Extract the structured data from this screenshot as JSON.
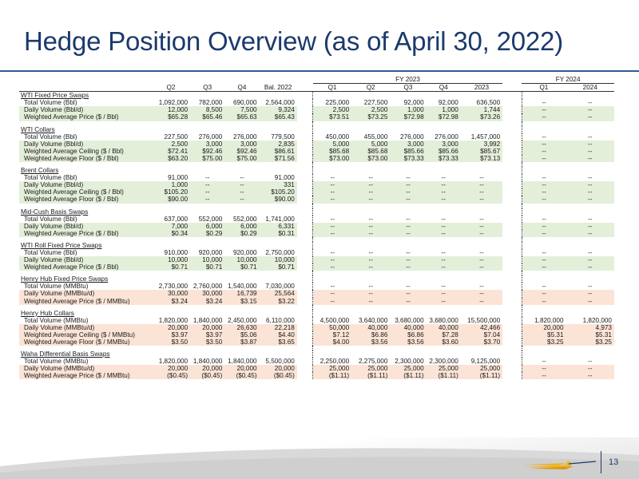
{
  "title": "Hedge Position Overview (as of April 30, 2022)",
  "page_number": "13",
  "headers": {
    "fy2023": "FY 2023",
    "fy2024": "FY 2024",
    "cols": [
      "Q2",
      "Q3",
      "Q4",
      "Bal. 2022",
      "Q1",
      "Q2",
      "Q3",
      "Q4",
      "2023",
      "Q1",
      "2024"
    ]
  },
  "sections": [
    {
      "title": "WTI Fixed Price Swaps",
      "shade": "green",
      "rows": [
        {
          "label": "Total Volume (Bbl)",
          "values": [
            "1,092,000",
            "782,000",
            "690,000",
            "2,564,000",
            "225,000",
            "227,500",
            "92,000",
            "92,000",
            "636,500",
            "--",
            "--"
          ]
        },
        {
          "label": "Daily Volume (Bbl/d)",
          "values": [
            "12,000",
            "8,500",
            "7,500",
            "9,324",
            "2,500",
            "2,500",
            "1,000",
            "1,000",
            "1,744",
            "--",
            "--"
          ]
        },
        {
          "label": "Weighted Average Price ($ / Bbl)",
          "values": [
            "$65.28",
            "$65.46",
            "$65.63",
            "$65.43",
            "$73.51",
            "$73.25",
            "$72.98",
            "$72.98",
            "$73.26",
            "--",
            "--"
          ]
        }
      ]
    },
    {
      "title": "WTI Collars",
      "shade": "green",
      "rows": [
        {
          "label": "Total Volume (Bbl)",
          "values": [
            "227,500",
            "276,000",
            "276,000",
            "779,500",
            "450,000",
            "455,000",
            "276,000",
            "276,000",
            "1,457,000",
            "--",
            "--"
          ]
        },
        {
          "label": "Daily Volume (Bbl/d)",
          "values": [
            "2,500",
            "3,000",
            "3,000",
            "2,835",
            "5,000",
            "5,000",
            "3,000",
            "3,000",
            "3,992",
            "--",
            "--"
          ]
        },
        {
          "label": "Weighted Average Ceiling ($ / Bbl)",
          "values": [
            "$72.41",
            "$92.46",
            "$92.46",
            "$86.61",
            "$85.68",
            "$85.68",
            "$85.66",
            "$85.66",
            "$85.67",
            "--",
            "--"
          ]
        },
        {
          "label": "Weighted Average Floor ($ / Bbl)",
          "values": [
            "$63.20",
            "$75.00",
            "$75.00",
            "$71.56",
            "$73.00",
            "$73.00",
            "$73.33",
            "$73.33",
            "$73.13",
            "--",
            "--"
          ]
        }
      ]
    },
    {
      "title": "Brent Collars",
      "shade": "green",
      "rows": [
        {
          "label": "Total Volume (Bbl)",
          "values": [
            "91,000",
            "--",
            "--",
            "91,000",
            "--",
            "--",
            "--",
            "--",
            "--",
            "--",
            "--"
          ]
        },
        {
          "label": "Daily Volume (Bbl/d)",
          "values": [
            "1,000",
            "--",
            "--",
            "331",
            "--",
            "--",
            "--",
            "--",
            "--",
            "--",
            "--"
          ]
        },
        {
          "label": "Weighted Average Ceiling ($ / Bbl)",
          "values": [
            "$105.20",
            "--",
            "--",
            "$105.20",
            "--",
            "--",
            "--",
            "--",
            "--",
            "--",
            "--"
          ]
        },
        {
          "label": "Weighted Average Floor ($ / Bbl)",
          "values": [
            "$90.00",
            "--",
            "--",
            "$90.00",
            "--",
            "--",
            "--",
            "--",
            "--",
            "--",
            "--"
          ]
        }
      ]
    },
    {
      "title": "Mid-Cush Basis Swaps",
      "shade": "green",
      "rows": [
        {
          "label": "Total Volume (Bbl)",
          "values": [
            "637,000",
            "552,000",
            "552,000",
            "1,741,000",
            "--",
            "--",
            "--",
            "--",
            "--",
            "--",
            "--"
          ]
        },
        {
          "label": "Daily Volume (Bbl/d)",
          "values": [
            "7,000",
            "6,000",
            "6,000",
            "6,331",
            "--",
            "--",
            "--",
            "--",
            "--",
            "--",
            "--"
          ]
        },
        {
          "label": "Weighted Average Price ($ / Bbl)",
          "values": [
            "$0.34",
            "$0.29",
            "$0.29",
            "$0.31",
            "--",
            "--",
            "--",
            "--",
            "--",
            "--",
            "--"
          ]
        }
      ]
    },
    {
      "title": "WTI Roll Fixed Price Swaps",
      "shade": "green",
      "rows": [
        {
          "label": "Total Volume (Bbl)",
          "values": [
            "910,000",
            "920,000",
            "920,000",
            "2,750,000",
            "--",
            "--",
            "--",
            "--",
            "--",
            "--",
            "--"
          ]
        },
        {
          "label": "Daily Volume (Bbl/d)",
          "values": [
            "10,000",
            "10,000",
            "10,000",
            "10,000",
            "--",
            "--",
            "--",
            "--",
            "--",
            "--",
            "--"
          ]
        },
        {
          "label": "Weighted Average Price ($ / Bbl)",
          "values": [
            "$0.71",
            "$0.71",
            "$0.71",
            "$0.71",
            "--",
            "--",
            "--",
            "--",
            "--",
            "--",
            "--"
          ]
        }
      ]
    },
    {
      "title": "Henry Hub Fixed Price Swaps",
      "shade": "peach",
      "rows": [
        {
          "label": "Total Volume (MMBtu)",
          "values": [
            "2,730,000",
            "2,760,000",
            "1,540,000",
            "7,030,000",
            "--",
            "--",
            "--",
            "--",
            "--",
            "--",
            "--"
          ]
        },
        {
          "label": "Daily Volume (MMBtu/d)",
          "values": [
            "30,000",
            "30,000",
            "16,739",
            "25,564",
            "--",
            "--",
            "--",
            "--",
            "--",
            "--",
            "--"
          ]
        },
        {
          "label": "Weighted Average Price ($ / MMBtu)",
          "values": [
            "$3.24",
            "$3.24",
            "$3.15",
            "$3.22",
            "--",
            "--",
            "--",
            "--",
            "--",
            "--",
            "--"
          ]
        }
      ]
    },
    {
      "title": "Henry Hub Collars",
      "shade": "peach",
      "rows": [
        {
          "label": "Total Volume (MMBtu)",
          "values": [
            "1,820,000",
            "1,840,000",
            "2,450,000",
            "6,110,000",
            "4,500,000",
            "3,640,000",
            "3,680,000",
            "3,680,000",
            "15,500,000",
            "1,820,000",
            "1,820,000"
          ]
        },
        {
          "label": "Daily Volume (MMBtu/d)",
          "values": [
            "20,000",
            "20,000",
            "26,630",
            "22,218",
            "50,000",
            "40,000",
            "40,000",
            "40,000",
            "42,466",
            "20,000",
            "4,973"
          ]
        },
        {
          "label": "Weighted Average Ceiling ($ / MMBtu)",
          "values": [
            "$3.97",
            "$3.97",
            "$5.06",
            "$4.40",
            "$7.12",
            "$6.86",
            "$6.86",
            "$7.28",
            "$7.04",
            "$5.31",
            "$5.31"
          ]
        },
        {
          "label": "Weighted Average Floor ($ / MMBtu)",
          "values": [
            "$3.50",
            "$3.50",
            "$3.87",
            "$3.65",
            "$4.00",
            "$3.56",
            "$3.56",
            "$3.60",
            "$3.70",
            "$3.25",
            "$3.25"
          ]
        }
      ]
    },
    {
      "title": "Waha Differential Basis Swaps",
      "shade": "peach",
      "rows": [
        {
          "label": "Total Volume (MMBtu)",
          "values": [
            "1,820,000",
            "1,840,000",
            "1,840,000",
            "5,500,000",
            "2,250,000",
            "2,275,000",
            "2,300,000",
            "2,300,000",
            "9,125,000",
            "--",
            "--"
          ]
        },
        {
          "label": "Daily Volume (MMBtu/d)",
          "values": [
            "20,000",
            "20,000",
            "20,000",
            "20,000",
            "25,000",
            "25,000",
            "25,000",
            "25,000",
            "25,000",
            "--",
            "--"
          ]
        },
        {
          "label": "Weighted Average Price ($ / MMBtu)",
          "values": [
            "($0.45)",
            "($0.45)",
            "($0.45)",
            "($0.45)",
            "($1.11)",
            "($1.11)",
            "($1.11)",
            "($1.11)",
            "($1.11)",
            "--",
            "--"
          ]
        }
      ]
    }
  ]
}
